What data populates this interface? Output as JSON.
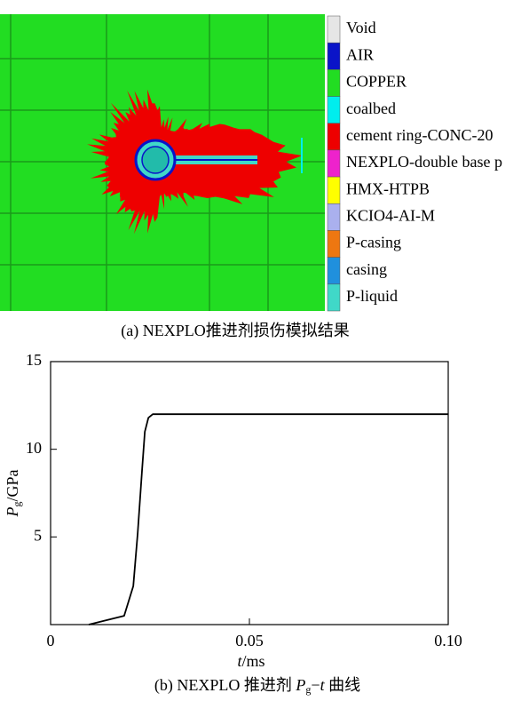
{
  "panel_a": {
    "caption": "(a)  NEXPLO推进剂损伤模拟结果",
    "legend": [
      {
        "label": "Void",
        "color": "#e6e6e6"
      },
      {
        "label": "AIR",
        "color": "#0a14c8"
      },
      {
        "label": "COPPER",
        "color": "#22dd22"
      },
      {
        "label": "coalbed",
        "color": "#00eeee"
      },
      {
        "label": "cement ring-CONC-20",
        "color": "#ee0000"
      },
      {
        "label": "NEXPLO-double base p",
        "color": "#ee22cc"
      },
      {
        "label": "HMX-HTPB",
        "color": "#ffff00"
      },
      {
        "label": "KCIO4-AI-M",
        "color": "#aab0ee"
      },
      {
        "label": "P-casing",
        "color": "#ee7711"
      },
      {
        "label": "casing",
        "color": "#2090dd"
      },
      {
        "label": "P-liquid",
        "color": "#40d8c8"
      }
    ]
  },
  "chart_data": {
    "type": "line",
    "caption": {
      "prefix": "(b) NEXPLO 推进剂 ",
      "var": "P",
      "sub": "g",
      "dash": "−",
      "var2": "t",
      "suffix": " 曲线"
    },
    "xlabel": {
      "var": "t",
      "unit": "/ms"
    },
    "ylabel": {
      "var": "P",
      "sub": "g",
      "unit": "/GPa"
    },
    "x": [
      0.0096,
      0.0185,
      0.0208,
      0.0219,
      0.023,
      0.0237,
      0.0246,
      0.0257,
      0.1
    ],
    "series": [
      {
        "color": "#000000",
        "values": [
          0,
          0.5,
          2.2,
          5.2,
          8.8,
          11,
          11.8,
          12,
          12
        ]
      }
    ],
    "xlim": [
      0,
      0.1
    ],
    "ylim": [
      0,
      15
    ],
    "xticks": [
      0,
      0.05,
      {
        "value": 0.1,
        "label": "0.10"
      }
    ],
    "yticks": [
      5,
      10,
      15
    ]
  }
}
